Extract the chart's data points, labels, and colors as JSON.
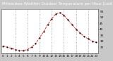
{
  "title": "Milwaukee Weather Outdoor Temperature per Hour (Last 24 Hours)",
  "hours": [
    0,
    1,
    2,
    3,
    4,
    5,
    6,
    7,
    8,
    9,
    10,
    11,
    12,
    13,
    14,
    15,
    16,
    17,
    18,
    19,
    20,
    21,
    22,
    23
  ],
  "temps": [
    26,
    25,
    24,
    23,
    22,
    22,
    23,
    25,
    28,
    33,
    38,
    44,
    49,
    53,
    54,
    52,
    48,
    44,
    40,
    37,
    34,
    32,
    30,
    29
  ],
  "line_color": "#ff0000",
  "marker_color": "#000000",
  "bg_color": "#c8c8c8",
  "plot_bg": "#ffffff",
  "grid_color": "#808080",
  "title_bg": "#000000",
  "title_text_color": "#ffffff",
  "ylim": [
    20,
    57
  ],
  "yticks": [
    25,
    30,
    35,
    40,
    45,
    50,
    55
  ],
  "vgrid_positions": [
    3,
    6,
    9,
    12,
    15,
    18,
    21
  ],
  "title_fontsize": 4.0,
  "tick_fontsize": 3.0
}
